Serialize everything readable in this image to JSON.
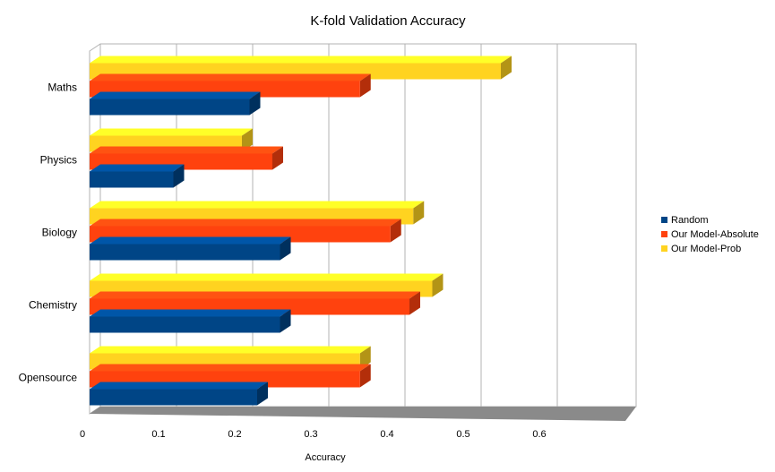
{
  "chart_data": {
    "type": "bar",
    "orientation": "horizontal",
    "title": "K-fold Validation Accuracy",
    "xlabel": "Accuracy",
    "ylabel": "",
    "categories": [
      "Maths",
      "Physics",
      "Biology",
      "Chemistry",
      "Opensource"
    ],
    "series": [
      {
        "name": "Random",
        "color": "#004586",
        "values": [
          0.21,
          0.11,
          0.25,
          0.25,
          0.22
        ]
      },
      {
        "name": "Our Model-Absolute",
        "color": "#ff420e",
        "values": [
          0.355,
          0.24,
          0.395,
          0.42,
          0.355
        ]
      },
      {
        "name": "Our Model-Prob",
        "color": "#ffd320",
        "values": [
          0.54,
          0.2,
          0.425,
          0.45,
          0.355
        ]
      }
    ],
    "xlim": [
      0,
      0.6
    ],
    "xticks": [
      "0",
      "0.1",
      "0.2",
      "0.3",
      "0.4",
      "0.5",
      "0.6"
    ],
    "grid": "vertical",
    "legend_position": "right",
    "style": "3d"
  }
}
